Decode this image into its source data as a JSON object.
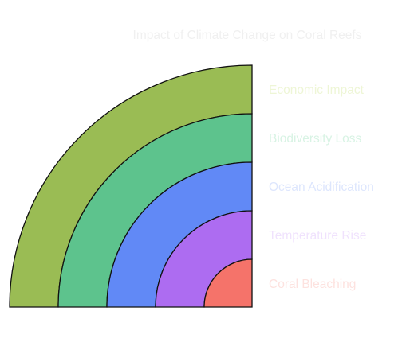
{
  "title": "Impact of Climate Change on Coral Reefs",
  "colors": {
    "title": "#f0f0f0",
    "outline": "#111111"
  },
  "layers": [
    {
      "label": "Economic Impact",
      "fill": "#9abc54",
      "label_color": "#eef6d6"
    },
    {
      "label": "Biodiversity Loss",
      "fill": "#5dc38d",
      "label_color": "#d8f3e4"
    },
    {
      "label": "Ocean Acidification",
      "fill": "#6189f6",
      "label_color": "#dde6fd"
    },
    {
      "label": "Temperature Rise",
      "fill": "#ad6cf1",
      "label_color": "#f0e2fd"
    },
    {
      "label": "Coral Bleaching",
      "fill": "#f5736a",
      "label_color": "#fde2df"
    }
  ]
}
